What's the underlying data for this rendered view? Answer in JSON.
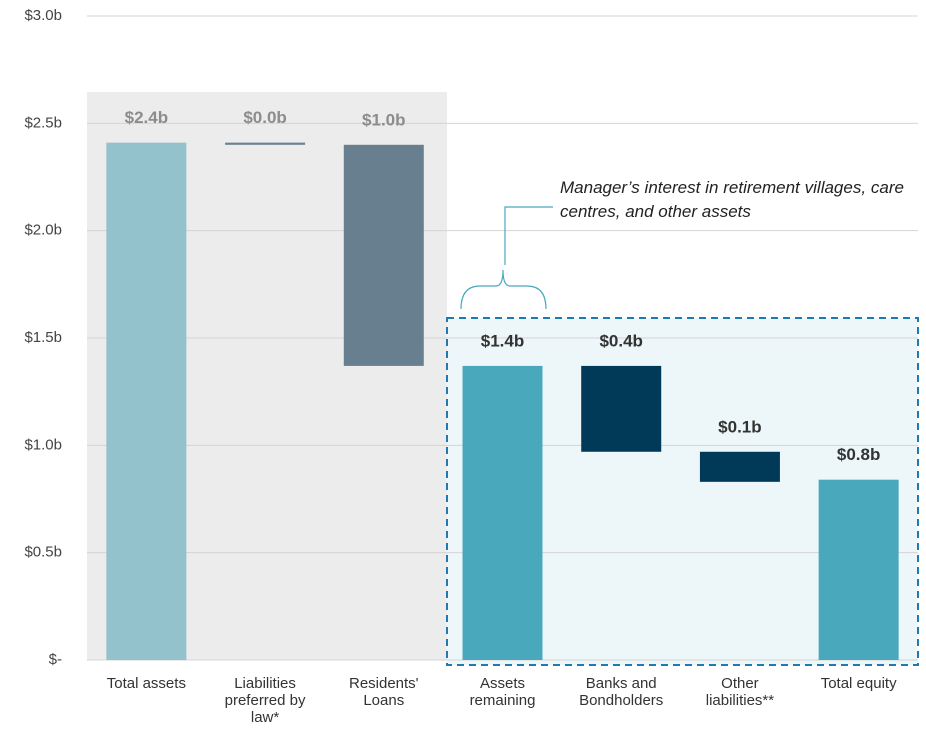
{
  "chart_data": {
    "type": "waterfall",
    "categories": [
      "Total assets",
      "Liabilities preferred by law*",
      "Residents' Loans",
      "Assets remaining",
      "Banks and Bondholders",
      "Other liabilities**",
      "Total equity"
    ],
    "values": [
      2.41,
      0.01,
      1.03,
      1.37,
      0.4,
      0.14,
      0.84
    ],
    "value_labels": [
      "$2.4b",
      "$0.0b",
      "$1.0b",
      "$1.4b",
      "$0.4b",
      "$0.1b",
      "$0.8b"
    ],
    "measures": [
      "total",
      "decrease",
      "decrease",
      "total",
      "decrease",
      "decrease",
      "total"
    ],
    "colors": [
      "#93c1cc",
      "#6a8090",
      "#677f8e",
      "#4aa8bd",
      "#003a58",
      "#003a58",
      "#4aa8bd"
    ],
    "label_colors": [
      "#8c8c8c",
      "#8c8c8c",
      "#8c8c8c",
      "#333333",
      "#333333",
      "#333333",
      "#333333"
    ],
    "ylim": [
      0,
      3
    ],
    "yticks": [
      {
        "value": 0,
        "label": "$-"
      },
      {
        "value": 0.5,
        "label": "$0.5b"
      },
      {
        "value": 1,
        "label": "$1.0b"
      },
      {
        "value": 1.5,
        "label": "$1.5b"
      },
      {
        "value": 2,
        "label": "$2.0b"
      },
      {
        "value": 2.5,
        "label": "$2.5b"
      },
      {
        "value": 3,
        "label": "$3.0b"
      }
    ],
    "grid": true,
    "annotation": "Manager’s interest in retirement villages, care centres, and other assets"
  }
}
